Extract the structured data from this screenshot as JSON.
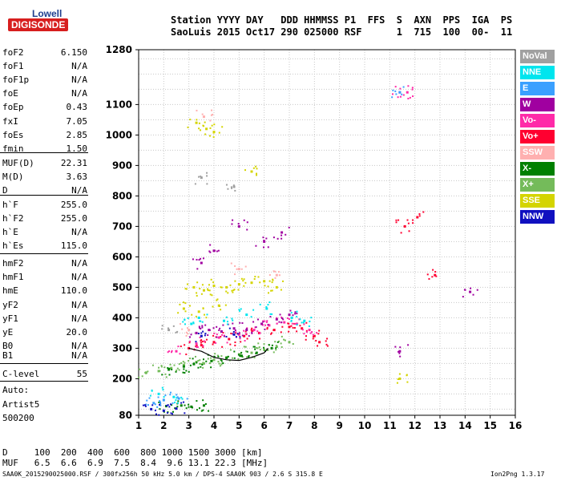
{
  "logo": {
    "brand": "Lowell",
    "product": "DIGISONDE"
  },
  "header": {
    "line1": "Station YYYY DAY   DDD HHMMSS P1  FFS  S  AXN  PPS  IGA  PS",
    "line2": "SaoLuis 2015 Oct17 290 025000 RSF      1  715  100  00-  11"
  },
  "params": [
    {
      "name": "foF2",
      "value": "6.150"
    },
    {
      "name": "foF1",
      "value": "N/A"
    },
    {
      "name": "foF1p",
      "value": "N/A"
    },
    {
      "name": "foE",
      "value": "N/A"
    },
    {
      "name": "foEp",
      "value": "0.43"
    },
    {
      "name": "fxI",
      "value": "7.05"
    },
    {
      "name": "foEs",
      "value": "2.85"
    },
    {
      "name": "fmin",
      "value": "1.50"
    },
    {
      "name": "MUF(D)",
      "value": "22.31"
    },
    {
      "name": "M(D)",
      "value": "3.63"
    },
    {
      "name": "D",
      "value": "N/A"
    },
    {
      "name": "h`F",
      "value": "255.0"
    },
    {
      "name": "h`F2",
      "value": "255.0"
    },
    {
      "name": "h`E",
      "value": "N/A"
    },
    {
      "name": "h`Es",
      "value": "115.0"
    },
    {
      "name": "hmF2",
      "value": "N/A"
    },
    {
      "name": "hmF1",
      "value": "N/A"
    },
    {
      "name": "hmE",
      "value": "110.0"
    },
    {
      "name": "yF2",
      "value": "N/A"
    },
    {
      "name": "yF1",
      "value": "N/A"
    },
    {
      "name": "yE",
      "value": "20.0"
    },
    {
      "name": "B0",
      "value": "N/A"
    },
    {
      "name": "B1",
      "value": "N/A"
    },
    {
      "name": "C-level",
      "value": "55"
    }
  ],
  "autoscaling": {
    "line1": "Auto:",
    "line2": "Artist5",
    "line3": "500200"
  },
  "legend": [
    {
      "label": "NoVal",
      "color": "#a0a0a0"
    },
    {
      "label": "NNE",
      "color": "#00e5ee"
    },
    {
      "label": "E",
      "color": "#3aa0ff"
    },
    {
      "label": "W",
      "color": "#a000a0"
    },
    {
      "label": "Vo-",
      "color": "#ff2aa8"
    },
    {
      "label": "Vo+",
      "color": "#ff0030"
    },
    {
      "label": "SSW",
      "color": "#ffb0b0"
    },
    {
      "label": "X-",
      "color": "#008000"
    },
    {
      "label": "X+",
      "color": "#74bb5a"
    },
    {
      "label": "SSE",
      "color": "#d4d400"
    },
    {
      "label": "NNW",
      "color": "#1010c0"
    }
  ],
  "bottom": {
    "line1": "D     100  200  400  600  800 1000 1500 3000 [km]",
    "line2": "MUF   6.5  6.6  6.9  7.5  8.4  9.6 13.1 22.3 [MHz]"
  },
  "footer": {
    "left": "SAA0K_2015290025000.RSF / 300fx256h 50 kHz 5.0 km / DPS-4 SAA0K 903 / 2.6 S 315.8 E",
    "right": "Ion2Png 1.3.17"
  },
  "chart_data": {
    "type": "scatter",
    "title": "",
    "xlabel": "",
    "ylabel": "",
    "xlim": [
      1,
      16
    ],
    "ylim": [
      80,
      1280
    ],
    "x_ticks": [
      1,
      2,
      3,
      4,
      5,
      6,
      7,
      8,
      9,
      10,
      11,
      12,
      13,
      14,
      15,
      16
    ],
    "y_ticks": [
      80,
      200,
      300,
      400,
      500,
      600,
      700,
      800,
      900,
      1000,
      1100,
      1280
    ],
    "grid": "on",
    "series": [
      {
        "name": "X+",
        "color": "#74bb5a",
        "points": [
          [
            1.3,
            220
          ],
          [
            1.8,
            225
          ],
          [
            2.3,
            235
          ],
          [
            2.8,
            245
          ],
          [
            3.3,
            255
          ],
          [
            3.6,
            250
          ],
          [
            4.0,
            262
          ],
          [
            4.5,
            270
          ],
          [
            5.0,
            280
          ],
          [
            5.5,
            285
          ],
          [
            6.0,
            295
          ],
          [
            6.5,
            305
          ],
          [
            7.0,
            320
          ]
        ]
      },
      {
        "name": "X-",
        "color": "#008000",
        "points": [
          [
            2.2,
            230
          ],
          [
            2.8,
            240
          ],
          [
            3.2,
            248
          ],
          [
            3.9,
            258
          ],
          [
            4.5,
            268
          ],
          [
            5.1,
            275
          ],
          [
            5.7,
            285
          ],
          [
            6.3,
            300
          ],
          [
            2.1,
            110
          ],
          [
            2.7,
            112
          ],
          [
            3.1,
            108
          ],
          [
            3.6,
            112
          ]
        ]
      },
      {
        "name": "Vo+",
        "color": "#ff0030",
        "points": [
          [
            3.0,
            300
          ],
          [
            3.5,
            310
          ],
          [
            4.0,
            320
          ],
          [
            4.6,
            330
          ],
          [
            5.2,
            340
          ],
          [
            5.8,
            350
          ],
          [
            6.4,
            360
          ],
          [
            7.0,
            370
          ],
          [
            7.5,
            365
          ],
          [
            8.0,
            340
          ],
          [
            8.2,
            320
          ],
          [
            12.8,
            540
          ],
          [
            12.1,
            730
          ],
          [
            11.6,
            700
          ]
        ]
      },
      {
        "name": "Vo-",
        "color": "#ff2aa8",
        "points": [
          [
            2.5,
            290
          ],
          [
            3.3,
            315
          ],
          [
            4.2,
            335
          ],
          [
            5.0,
            345
          ],
          [
            5.6,
            360
          ],
          [
            6.2,
            375
          ],
          [
            6.8,
            385
          ],
          [
            7.3,
            380
          ],
          [
            7.8,
            360
          ],
          [
            11.4,
            1140
          ],
          [
            11.7,
            1140
          ]
        ]
      },
      {
        "name": "W",
        "color": "#a000a0",
        "points": [
          [
            3.3,
            350
          ],
          [
            3.8,
            360
          ],
          [
            4.3,
            355
          ],
          [
            4.8,
            365
          ],
          [
            5.3,
            360
          ],
          [
            5.9,
            380
          ],
          [
            6.5,
            395
          ],
          [
            7.0,
            410
          ],
          [
            6.0,
            650
          ],
          [
            5.0,
            700
          ],
          [
            4.0,
            620
          ],
          [
            3.5,
            580
          ],
          [
            6.7,
            680
          ],
          [
            14.2,
            485
          ],
          [
            11.4,
            290
          ]
        ]
      },
      {
        "name": "SSE",
        "color": "#d4d400",
        "points": [
          [
            3.2,
            500
          ],
          [
            3.6,
            490
          ],
          [
            4.0,
            505
          ],
          [
            4.5,
            500
          ],
          [
            5.0,
            510
          ],
          [
            5.5,
            515
          ],
          [
            6.0,
            520
          ],
          [
            6.5,
            500
          ],
          [
            3.4,
            420
          ],
          [
            4.2,
            440
          ],
          [
            3.7,
            1020
          ],
          [
            4.0,
            1010
          ],
          [
            3.3,
            1040
          ],
          [
            5.5,
            880
          ],
          [
            11.4,
            200
          ],
          [
            2.8,
            430
          ]
        ]
      },
      {
        "name": "NNE",
        "color": "#00e5ee",
        "points": [
          [
            3.1,
            380
          ],
          [
            3.4,
            400
          ],
          [
            4.4,
            390
          ],
          [
            5.3,
            410
          ],
          [
            6.1,
            430
          ],
          [
            7.1,
            400
          ],
          [
            7.6,
            390
          ],
          [
            1.8,
            150
          ],
          [
            2.4,
            140
          ]
        ]
      },
      {
        "name": "E",
        "color": "#3aa0ff",
        "points": [
          [
            1.6,
            120
          ],
          [
            2.0,
            130
          ],
          [
            2.6,
            135
          ],
          [
            11.4,
            1140
          ]
        ]
      },
      {
        "name": "NNW",
        "color": "#1010c0",
        "points": [
          [
            1.5,
            100
          ],
          [
            2.0,
            95
          ],
          [
            2.5,
            102
          ],
          [
            3.5,
            340
          ],
          [
            4.8,
            345
          ]
        ]
      },
      {
        "name": "SSW",
        "color": "#ffb0b0",
        "points": [
          [
            3.0,
            360
          ],
          [
            3.6,
            1060
          ],
          [
            5.0,
            560
          ],
          [
            6.5,
            540
          ]
        ]
      },
      {
        "name": "NoVal",
        "color": "#a0a0a0",
        "points": [
          [
            3.5,
            860
          ],
          [
            4.8,
            830
          ],
          [
            2.2,
            360
          ]
        ]
      }
    ],
    "trace": {
      "color": "#000000",
      "points": [
        [
          3.0,
          300
        ],
        [
          3.5,
          290
        ],
        [
          4.0,
          270
        ],
        [
          4.5,
          262
        ],
        [
          5.0,
          260
        ],
        [
          5.5,
          270
        ],
        [
          6.0,
          285
        ],
        [
          6.15,
          300
        ]
      ]
    }
  }
}
